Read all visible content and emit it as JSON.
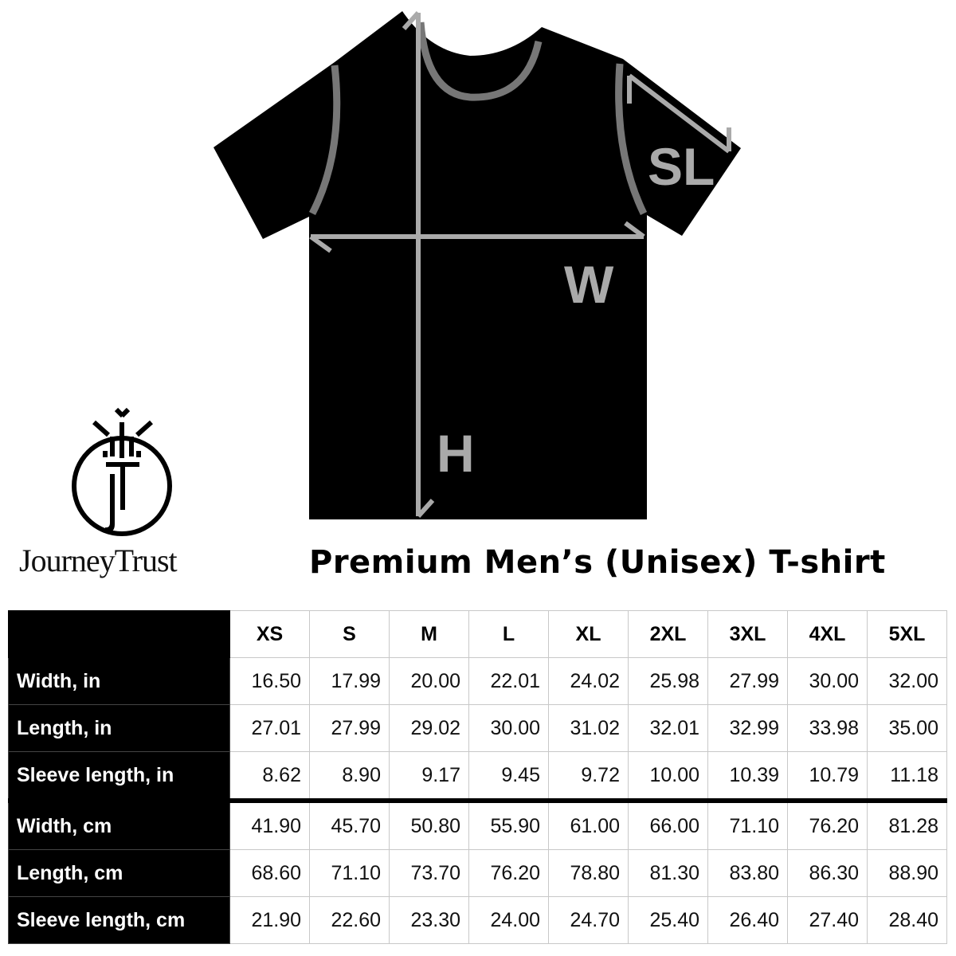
{
  "diagram": {
    "labels": {
      "width": "W",
      "height": "H",
      "sleeve": "SL"
    }
  },
  "brand": {
    "name": "JourneyTrust",
    "logo_letters": "JT"
  },
  "title": "Premium Men’s (Unisex) T-shirt",
  "table": {
    "sizes": [
      "XS",
      "S",
      "M",
      "L",
      "XL",
      "2XL",
      "3XL",
      "4XL",
      "5XL"
    ],
    "rows": [
      {
        "label": "Width, in",
        "values": [
          "16.50",
          "17.99",
          "20.00",
          "22.01",
          "24.02",
          "25.98",
          "27.99",
          "30.00",
          "32.00"
        ]
      },
      {
        "label": "Length, in",
        "values": [
          "27.01",
          "27.99",
          "29.02",
          "30.00",
          "31.02",
          "32.01",
          "32.99",
          "33.98",
          "35.00"
        ]
      },
      {
        "label": "Sleeve length, in",
        "values": [
          "8.62",
          "8.90",
          "9.17",
          "9.45",
          "9.72",
          "10.00",
          "10.39",
          "10.79",
          "11.18"
        ]
      },
      {
        "label": "Width, cm",
        "values": [
          "41.90",
          "45.70",
          "50.80",
          "55.90",
          "61.00",
          "66.00",
          "71.10",
          "76.20",
          "81.28"
        ]
      },
      {
        "label": "Length, cm",
        "values": [
          "68.60",
          "71.10",
          "73.70",
          "76.20",
          "78.80",
          "81.30",
          "83.80",
          "86.30",
          "88.90"
        ]
      },
      {
        "label": "Sleeve length, cm",
        "values": [
          "21.90",
          "22.60",
          "23.30",
          "24.00",
          "24.70",
          "25.40",
          "26.40",
          "27.40",
          "28.40"
        ]
      }
    ]
  }
}
